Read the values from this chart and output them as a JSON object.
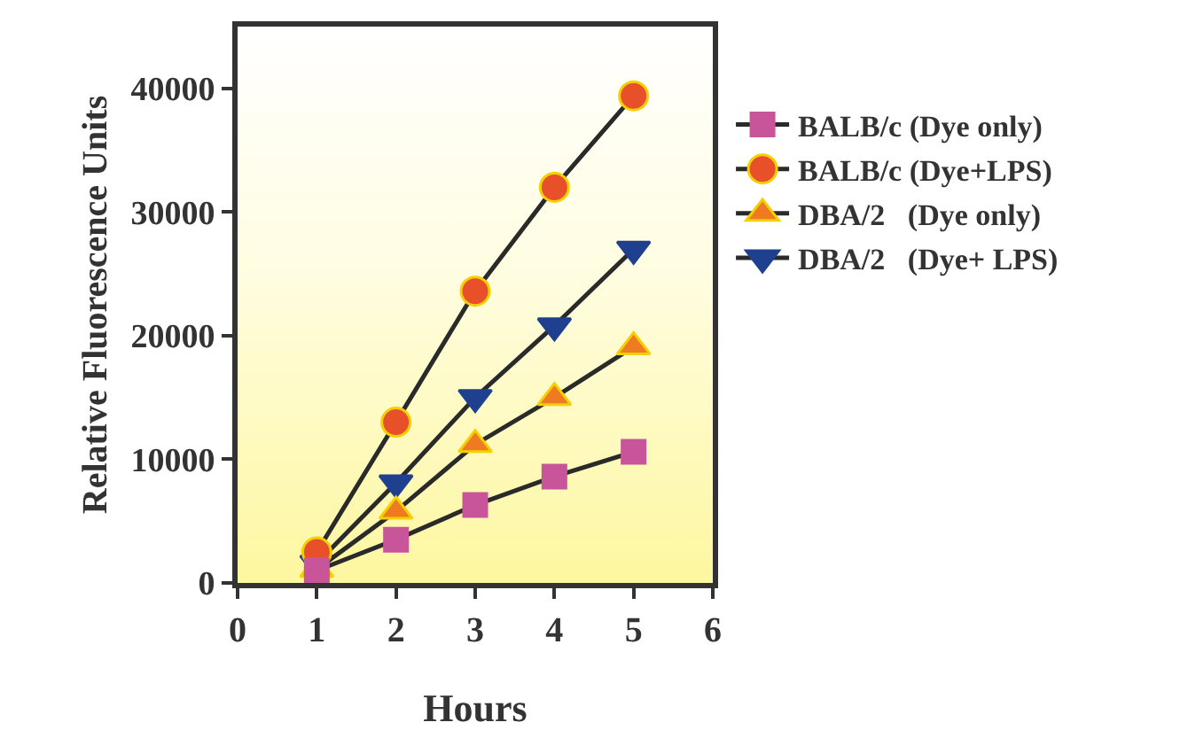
{
  "chart_data": {
    "type": "line",
    "xlabel": "Hours",
    "ylabel": "Relative Fluorescence Units",
    "x": [
      1,
      2,
      3,
      4,
      5
    ],
    "series": [
      {
        "name": "BALB/c (Dye only)",
        "color": "#c8559a",
        "marker": "square",
        "values": [
          1000,
          3500,
          6300,
          8600,
          10600
        ]
      },
      {
        "name": "BALB/c (Dye+LPS)",
        "color": "#e8502a",
        "marker": "circle",
        "values": [
          2500,
          13000,
          23600,
          32000,
          39400
        ]
      },
      {
        "name": "DBA/2   (Dye only)",
        "color": "#ee7a22",
        "marker": "triangle",
        "values": [
          1100,
          5800,
          11200,
          15000,
          19100
        ]
      },
      {
        "name": "DBA/2   (Dye+ LPS)",
        "color": "#1f3f8f",
        "marker": "triangle-down",
        "values": [
          1600,
          8100,
          15000,
          20800,
          27000
        ]
      }
    ],
    "xlim": [
      0,
      6
    ],
    "xticks": [
      0,
      1,
      2,
      3,
      4,
      5,
      6
    ],
    "ylim": [
      0,
      45000
    ],
    "yticks": [
      0,
      10000,
      20000,
      30000,
      40000
    ],
    "grid": false,
    "legend": "right",
    "line_style": "solid"
  }
}
